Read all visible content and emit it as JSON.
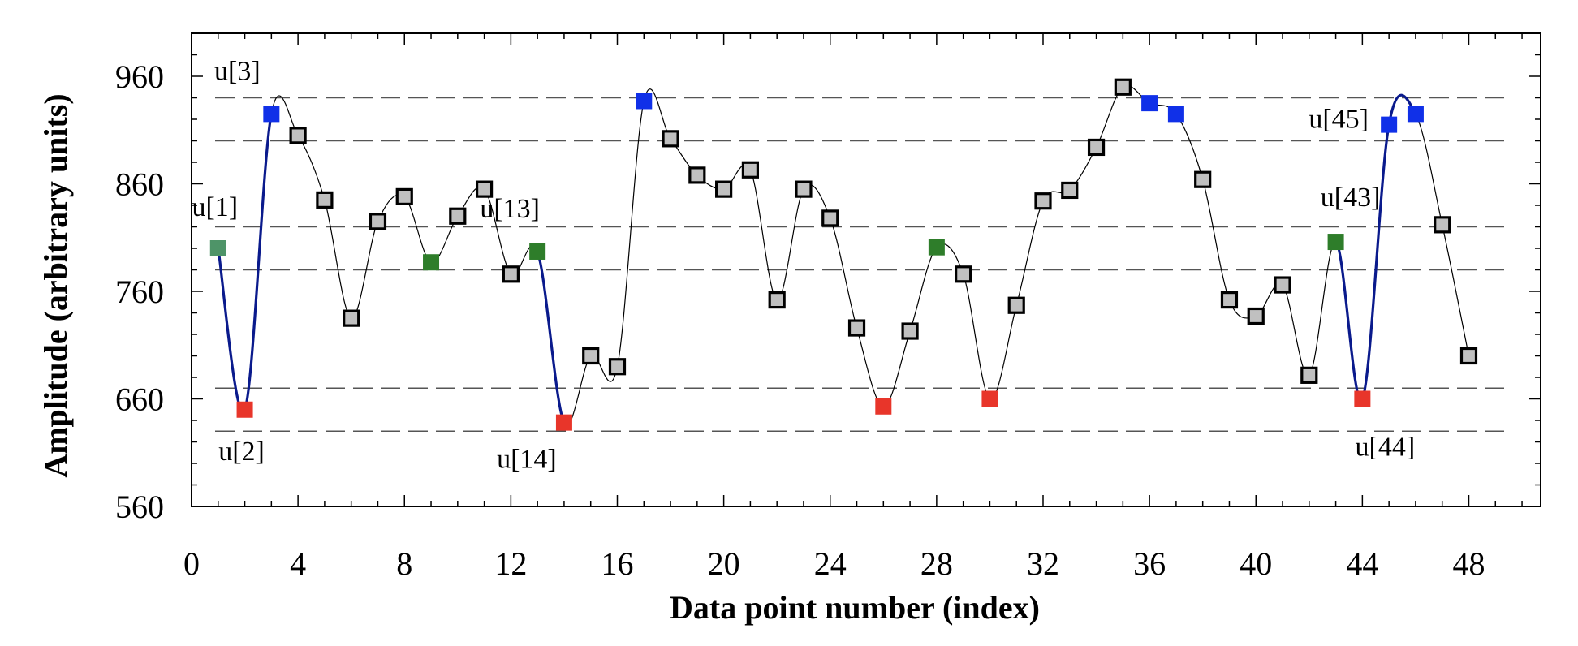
{
  "chart_data": {
    "type": "line",
    "title": "",
    "xlabel": "Data point number (index)",
    "ylabel": "Amplitude (arbitrary units)",
    "xlim": [
      0,
      50.7
    ],
    "ylim": [
      560,
      1000
    ],
    "x_ticks": [
      0,
      4,
      8,
      12,
      16,
      20,
      24,
      28,
      32,
      36,
      40,
      44,
      48
    ],
    "y_ticks": [
      560,
      660,
      760,
      860,
      960
    ],
    "grid": false,
    "legend": "none",
    "reference_lines_y": [
      940,
      900,
      820,
      780,
      670,
      630
    ],
    "series": [
      {
        "marker": "square",
        "points": [
          {
            "x": 1,
            "y": 800,
            "kind": "start"
          },
          {
            "x": 2,
            "y": 650,
            "kind": "min"
          },
          {
            "x": 3,
            "y": 925,
            "kind": "max"
          },
          {
            "x": 4,
            "y": 905,
            "kind": "normal"
          },
          {
            "x": 5,
            "y": 845,
            "kind": "normal"
          },
          {
            "x": 6,
            "y": 735,
            "kind": "normal"
          },
          {
            "x": 7,
            "y": 825,
            "kind": "normal"
          },
          {
            "x": 8,
            "y": 848,
            "kind": "normal"
          },
          {
            "x": 9,
            "y": 787,
            "kind": "mid"
          },
          {
            "x": 10,
            "y": 830,
            "kind": "normal"
          },
          {
            "x": 11,
            "y": 855,
            "kind": "normal"
          },
          {
            "x": 12,
            "y": 776,
            "kind": "normal"
          },
          {
            "x": 13,
            "y": 797,
            "kind": "mid"
          },
          {
            "x": 14,
            "y": 638,
            "kind": "min"
          },
          {
            "x": 15,
            "y": 700,
            "kind": "normal"
          },
          {
            "x": 16,
            "y": 690,
            "kind": "normal"
          },
          {
            "x": 17,
            "y": 937,
            "kind": "max"
          },
          {
            "x": 18,
            "y": 902,
            "kind": "normal"
          },
          {
            "x": 19,
            "y": 868,
            "kind": "normal"
          },
          {
            "x": 20,
            "y": 855,
            "kind": "normal"
          },
          {
            "x": 21,
            "y": 873,
            "kind": "normal"
          },
          {
            "x": 22,
            "y": 752,
            "kind": "normal"
          },
          {
            "x": 23,
            "y": 855,
            "kind": "normal"
          },
          {
            "x": 24,
            "y": 828,
            "kind": "normal"
          },
          {
            "x": 25,
            "y": 726,
            "kind": "normal"
          },
          {
            "x": 26,
            "y": 653,
            "kind": "min"
          },
          {
            "x": 27,
            "y": 723,
            "kind": "normal"
          },
          {
            "x": 28,
            "y": 801,
            "kind": "mid"
          },
          {
            "x": 29,
            "y": 776,
            "kind": "normal"
          },
          {
            "x": 30,
            "y": 660,
            "kind": "min"
          },
          {
            "x": 31,
            "y": 747,
            "kind": "normal"
          },
          {
            "x": 32,
            "y": 844,
            "kind": "normal"
          },
          {
            "x": 33,
            "y": 854,
            "kind": "normal"
          },
          {
            "x": 34,
            "y": 894,
            "kind": "normal"
          },
          {
            "x": 35,
            "y": 950,
            "kind": "normal"
          },
          {
            "x": 36,
            "y": 935,
            "kind": "max"
          },
          {
            "x": 37,
            "y": 925,
            "kind": "max"
          },
          {
            "x": 38,
            "y": 864,
            "kind": "normal"
          },
          {
            "x": 39,
            "y": 752,
            "kind": "normal"
          },
          {
            "x": 40,
            "y": 737,
            "kind": "normal"
          },
          {
            "x": 41,
            "y": 766,
            "kind": "normal"
          },
          {
            "x": 42,
            "y": 682,
            "kind": "normal"
          },
          {
            "x": 43,
            "y": 806,
            "kind": "mid"
          },
          {
            "x": 44,
            "y": 660,
            "kind": "min"
          },
          {
            "x": 45,
            "y": 915,
            "kind": "max"
          },
          {
            "x": 46,
            "y": 925,
            "kind": "max"
          },
          {
            "x": 47,
            "y": 822,
            "kind": "normal"
          },
          {
            "x": 48,
            "y": 700,
            "kind": "normal"
          }
        ]
      }
    ],
    "highlighted_segments": [
      [
        1,
        3
      ],
      [
        13,
        14
      ],
      [
        43,
        46
      ]
    ],
    "annotations": [
      {
        "text": "u[1]",
        "x": 1,
        "y": 800
      },
      {
        "text": "u[2]",
        "x": 2,
        "y": 650
      },
      {
        "text": "u[3]",
        "x": 3,
        "y": 925
      },
      {
        "text": "u[13]",
        "x": 13,
        "y": 797
      },
      {
        "text": "u[14]",
        "x": 14,
        "y": 638
      },
      {
        "text": "u[43]",
        "x": 43,
        "y": 806
      },
      {
        "text": "u[44]",
        "x": 44,
        "y": 660
      },
      {
        "text": "u[45]",
        "x": 45,
        "y": 915
      }
    ],
    "colors": {
      "normal_fill": "#c0c0c0",
      "normal_stroke": "#000000",
      "min": "#e8352a",
      "max": "#1030e8",
      "mid": "#2e7d2a",
      "start": "#4e9468",
      "highlight_line": "#0a1a8c",
      "thin_line": "#000000",
      "ref_line": "#555555"
    }
  }
}
